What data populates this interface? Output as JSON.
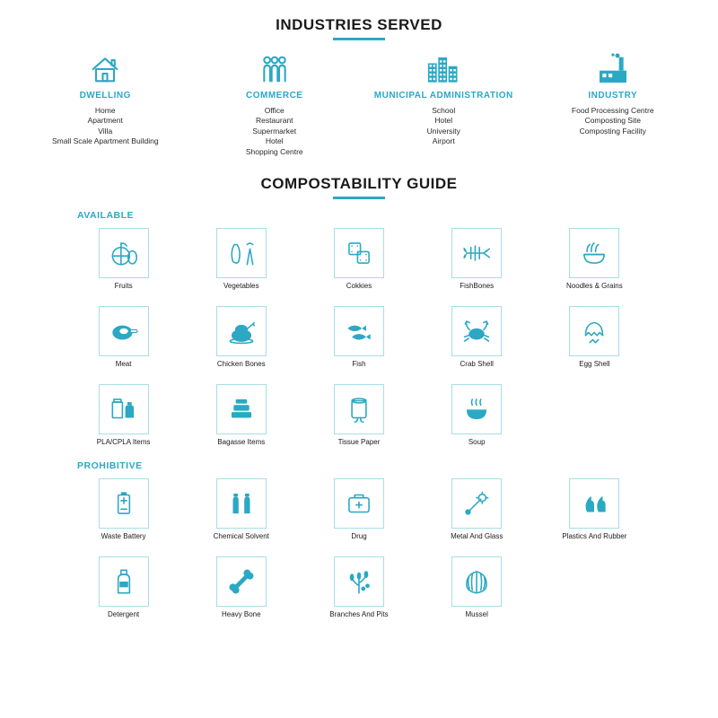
{
  "colors": {
    "accent": "#2ba8c4",
    "text": "#1a1a1a",
    "tile_border": "#a8dde8",
    "background": "#ffffff"
  },
  "typography": {
    "section_title_size": 17,
    "industry_label_size": 10,
    "industry_item_size": 8.5,
    "sub_heading_size": 10.5,
    "tile_label_size": 8
  },
  "section1": {
    "title": "INDUSTRIES SERVED",
    "columns": [
      {
        "icon": "house",
        "label": "DWELLING",
        "items": [
          "Home",
          "Apartment",
          "Villa",
          "Small Scale Apartment Building"
        ]
      },
      {
        "icon": "people",
        "label": "COMMERCE",
        "items": [
          "Office",
          "Restaurant",
          "Supermarket",
          "Hotel",
          "Shopping Centre"
        ]
      },
      {
        "icon": "building",
        "label": "MUNICIPAL ADMINISTRATION",
        "items": [
          "School",
          "Hotel",
          "University",
          "Airport"
        ]
      },
      {
        "icon": "factory",
        "label": "INDUSTRY",
        "items": [
          "Food Processing Centre",
          "Composting Site",
          "Composting Facility"
        ]
      }
    ]
  },
  "section2": {
    "title": "COMPOSTABILITY GUIDE",
    "groups": [
      {
        "heading": "AVAILABLE",
        "tiles": [
          {
            "icon": "fruits",
            "label": "Fruits"
          },
          {
            "icon": "vegetables",
            "label": "Vegetables"
          },
          {
            "icon": "cookies",
            "label": "Cokkies"
          },
          {
            "icon": "fishbones",
            "label": "FishBones"
          },
          {
            "icon": "noodles",
            "label": "Noodles & Grains"
          },
          {
            "icon": "meat",
            "label": "Meat"
          },
          {
            "icon": "chicken",
            "label": "Chicken Bones"
          },
          {
            "icon": "fish",
            "label": "Fish"
          },
          {
            "icon": "crab",
            "label": "Crab Shell"
          },
          {
            "icon": "eggshell",
            "label": "Egg Shell"
          },
          {
            "icon": "pla",
            "label": "PLA/CPLA Items"
          },
          {
            "icon": "bagasse",
            "label": "Bagasse Items"
          },
          {
            "icon": "tissue",
            "label": "Tissue Paper"
          },
          {
            "icon": "soup",
            "label": "Soup"
          }
        ]
      },
      {
        "heading": "PROHIBITIVE",
        "tiles": [
          {
            "icon": "battery",
            "label": "Waste Battery"
          },
          {
            "icon": "solvent",
            "label": "Chemical Solvent"
          },
          {
            "icon": "drug",
            "label": "Drug"
          },
          {
            "icon": "metal",
            "label": "Metal And Glass"
          },
          {
            "icon": "rubber",
            "label": "Plastics And Rubber"
          },
          {
            "icon": "detergent",
            "label": "Detergent"
          },
          {
            "icon": "bone",
            "label": "Heavy Bone"
          },
          {
            "icon": "branches",
            "label": "Branches And Pits"
          },
          {
            "icon": "mussel",
            "label": "Mussel"
          }
        ]
      }
    ]
  }
}
